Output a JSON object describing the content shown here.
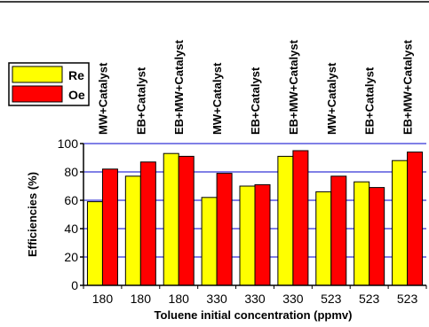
{
  "chart_data": {
    "type": "bar",
    "categories": [
      "180",
      "180",
      "180",
      "330",
      "330",
      "330",
      "523",
      "523",
      "523"
    ],
    "conditions": [
      "MW+Catalyst",
      "EB+Catalyst",
      "EB+MW+Catalyst",
      "MW+Catalyst",
      "EB+Catalyst",
      "EB+MW+Catalyst",
      "MW+Catalyst",
      "EB+Catalyst",
      "EB+MW+Catalyst"
    ],
    "series": [
      {
        "name": "Re",
        "color": "#ffff00",
        "values": [
          59,
          77,
          93,
          62,
          70,
          91,
          66,
          73,
          88
        ]
      },
      {
        "name": "Oe",
        "color": "#ff0000",
        "values": [
          82,
          87,
          91,
          79,
          71,
          95,
          77,
          69,
          94
        ]
      }
    ],
    "title": "",
    "xlabel": "Toluene initial concentration (ppmv)",
    "ylabel": "Efficiencies (%)",
    "ylim": [
      0,
      100
    ],
    "yticks": [
      0,
      20,
      40,
      60,
      80,
      100
    ],
    "grid": "horizontal",
    "grid_color": "#0000cc",
    "legend_position": "top-left"
  }
}
